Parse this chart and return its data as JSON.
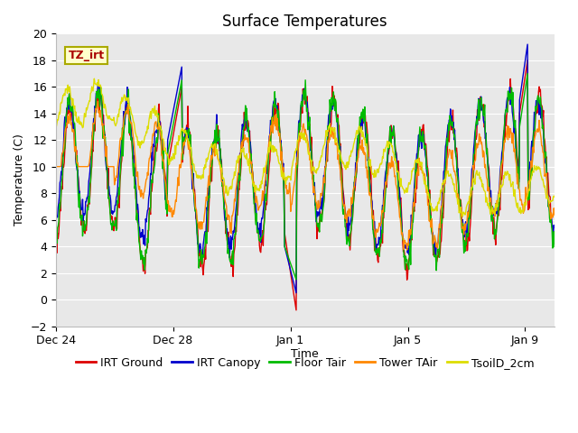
{
  "title": "Surface Temperatures",
  "xlabel": "Time",
  "ylabel": "Temperature (C)",
  "ylim": [
    -2,
    20
  ],
  "annotation_text": "TZ_irt",
  "annotation_color": "#aa0000",
  "annotation_bg": "#ffffcc",
  "annotation_border": "#aaaa00",
  "series_colors": {
    "IRT Ground": "#dd0000",
    "IRT Canopy": "#0000cc",
    "Floor Tair": "#00bb00",
    "Tower TAir": "#ff8800",
    "TsoilD_2cm": "#dddd00"
  },
  "xtick_labels": [
    "Dec 24",
    "Dec 28",
    "Jan 1",
    "Jan 5",
    "Jan 9"
  ],
  "xtick_positions": [
    0,
    4,
    8,
    12,
    16
  ],
  "yticks": [
    -2,
    0,
    2,
    4,
    6,
    8,
    10,
    12,
    14,
    16,
    18,
    20
  ],
  "fig_bg_color": "#ffffff",
  "plot_bg_color": "#e8e8e8",
  "grid_color": "#ffffff",
  "title_fontsize": 12,
  "axis_label_fontsize": 9,
  "tick_fontsize": 9,
  "legend_fontsize": 9,
  "linewidth": 1.0
}
